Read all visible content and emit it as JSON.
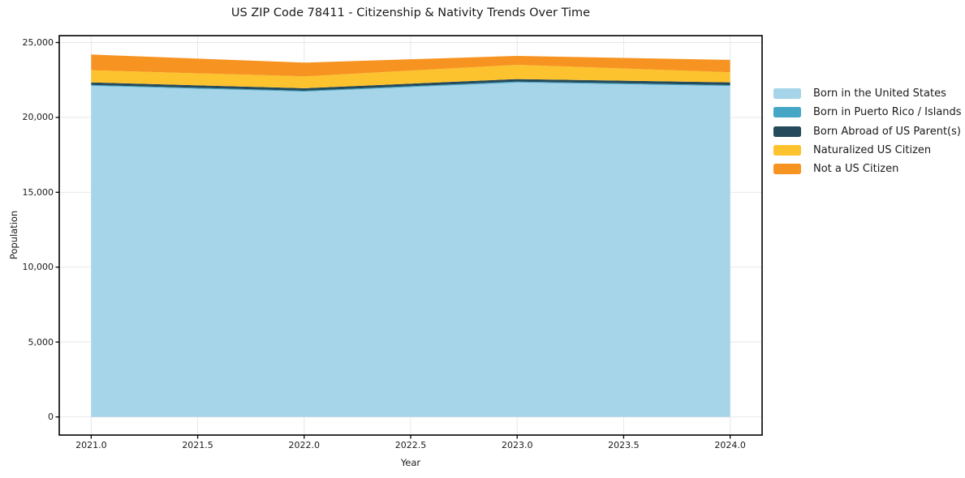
{
  "chart_data": {
    "type": "area",
    "stacked": true,
    "title": "US ZIP Code 78411 - Citizenship & Nativity Trends Over Time",
    "xlabel": "Year",
    "ylabel": "Population",
    "x": [
      2021,
      2022,
      2023,
      2024
    ],
    "series": [
      {
        "name": "Born in the United States",
        "color": "#a6d4e8",
        "values": [
          22110,
          21720,
          22330,
          22100
        ]
      },
      {
        "name": "Born in Puerto Rico / Islands",
        "color": "#45a7c5",
        "values": [
          60,
          60,
          60,
          60
        ]
      },
      {
        "name": "Born Abroad of US Parent(s)",
        "color": "#254a5c",
        "values": [
          170,
          170,
          170,
          185
        ]
      },
      {
        "name": "Naturalized US Citizen",
        "color": "#fdc32e",
        "values": [
          810,
          790,
          955,
          670
        ]
      },
      {
        "name": "Not a US Citizen",
        "color": "#f79421",
        "values": [
          1050,
          920,
          595,
          830
        ]
      }
    ],
    "xlim": [
      2020.85,
      2024.15
    ],
    "ylim": [
      -1212,
      25460
    ],
    "x_tick_values": [
      2021.0,
      2021.5,
      2022.0,
      2022.5,
      2023.0,
      2023.5,
      2024.0
    ],
    "x_tick_labels": [
      "2021.0",
      "2021.5",
      "2022.0",
      "2022.5",
      "2023.0",
      "2023.5",
      "2024.0"
    ],
    "y_tick_values": [
      0,
      5000,
      10000,
      15000,
      20000,
      25000
    ],
    "y_tick_labels": [
      "0",
      "5,000",
      "10,000",
      "15,000",
      "20,000",
      "25,000"
    ],
    "grid": true,
    "legend_position": "right-outside",
    "colors": {
      "grid": "#e8e8e8",
      "frame": "#000000",
      "tick": "#000000",
      "text": "#1a1a1a",
      "background": "#ffffff"
    }
  }
}
